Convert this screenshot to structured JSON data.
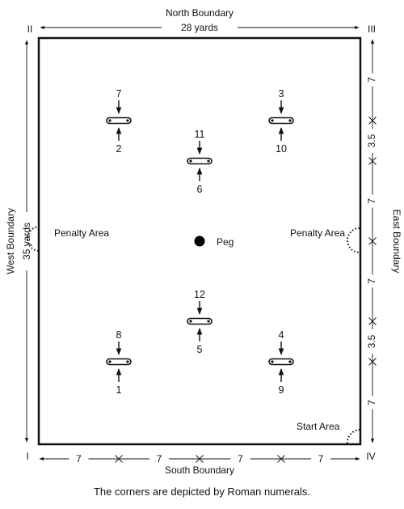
{
  "boundaries": {
    "north": "North Boundary",
    "south": "South Boundary",
    "west": "West Boundary",
    "east": "East Boundary"
  },
  "dimensions": {
    "width_label": "28 yards",
    "height_label": "35 yards",
    "bottom_segments": [
      "7",
      "7",
      "7",
      "7"
    ],
    "right_segments": [
      "7",
      "3.5",
      "7",
      "7",
      "3.5",
      "7"
    ]
  },
  "corners": {
    "top_left": "II",
    "top_right": "III",
    "bottom_left": "I",
    "bottom_right": "IV"
  },
  "areas": {
    "penalty_left": "Penalty Area",
    "penalty_right": "Penalty Area",
    "start": "Start Area",
    "peg": "Peg"
  },
  "hoops": [
    {
      "top": "7",
      "bottom": "2"
    },
    {
      "top": "3",
      "bottom": "10"
    },
    {
      "top": "11",
      "bottom": "6"
    },
    {
      "top": "12",
      "bottom": "5"
    },
    {
      "top": "8",
      "bottom": "1"
    },
    {
      "top": "4",
      "bottom": "9"
    }
  ],
  "caption": "The corners are depicted by Roman numerals."
}
